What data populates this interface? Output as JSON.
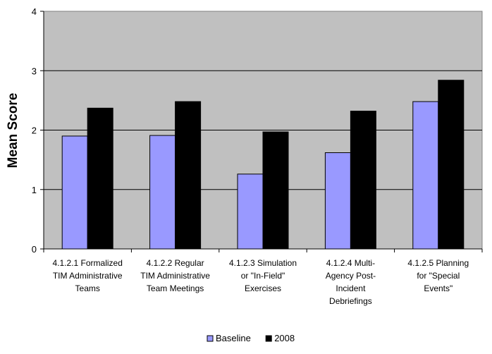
{
  "chart_data": {
    "type": "bar",
    "title": "",
    "xlabel": "",
    "ylabel": "Mean Score",
    "ylim": [
      0,
      4
    ],
    "yticks": [
      0,
      1,
      2,
      3,
      4
    ],
    "grid": true,
    "legend_position": "bottom",
    "background_color": "#c0c0c0",
    "categories": [
      [
        "4.1.2.1 Formalized",
        "TIM Administrative",
        "Teams"
      ],
      [
        "4.1.2.2 Regular",
        "TIM Administrative",
        "Team Meetings"
      ],
      [
        "4.1.2.3 Simulation",
        "or \"In-Field\"",
        "Exercises"
      ],
      [
        "4.1.2.4 Multi-",
        "Agency Post-",
        "Incident",
        "Debriefings"
      ],
      [
        "4.1.2.5 Planning",
        "for \"Special",
        "Events\""
      ]
    ],
    "series": [
      {
        "name": "Baseline",
        "color": "#9999ff",
        "values": [
          1.9,
          1.91,
          1.26,
          1.62,
          2.48
        ]
      },
      {
        "name": "2008",
        "color": "#000000",
        "values": [
          2.37,
          2.48,
          1.97,
          2.32,
          2.84
        ]
      }
    ]
  }
}
